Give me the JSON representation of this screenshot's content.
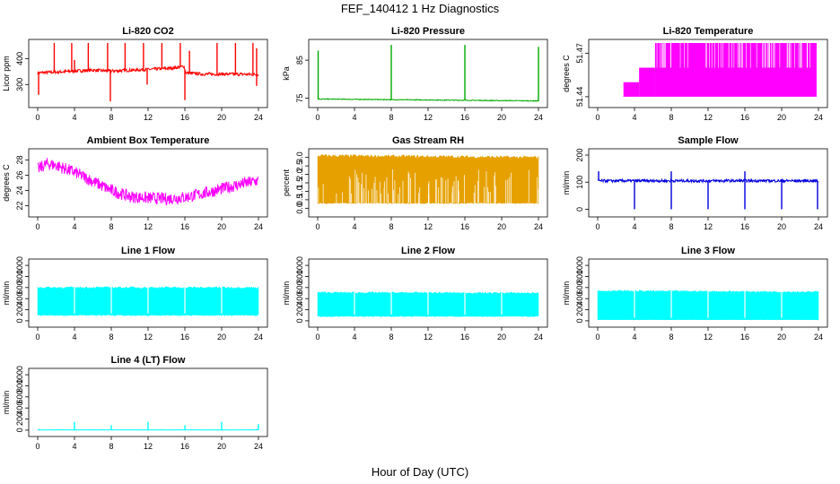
{
  "figure": {
    "title": "FEF_140412  1 Hz Diagnostics",
    "xlabel": "Hour of Day (UTC)"
  },
  "chart_data": [
    {
      "type": "line",
      "title": "Li-820 CO2",
      "ylabel": "Licor ppm",
      "color": "#ff0000",
      "xlim": [
        0,
        24
      ],
      "ylim": [
        225,
        460
      ],
      "x_ticks": [
        0,
        4,
        8,
        12,
        16,
        20,
        24
      ],
      "y_ticks": [
        300,
        400
      ],
      "baseline": [
        [
          0,
          345
        ],
        [
          2,
          348
        ],
        [
          4,
          352
        ],
        [
          6,
          355
        ],
        [
          8,
          352
        ],
        [
          10,
          355
        ],
        [
          12,
          358
        ],
        [
          14,
          362
        ],
        [
          15,
          365
        ],
        [
          15.9,
          370
        ],
        [
          16.1,
          345
        ],
        [
          18,
          340
        ],
        [
          20,
          340
        ],
        [
          22,
          340
        ],
        [
          24,
          338
        ]
      ],
      "noise": 6,
      "spikes_up": [
        [
          1.8,
          460
        ],
        [
          3.7,
          460
        ],
        [
          4.0,
          395
        ],
        [
          5.5,
          460
        ],
        [
          7.6,
          460
        ],
        [
          9.5,
          460
        ],
        [
          11.5,
          460
        ],
        [
          13.5,
          460
        ],
        [
          15.5,
          460
        ],
        [
          16.5,
          430
        ],
        [
          19.5,
          460
        ],
        [
          21.5,
          460
        ],
        [
          23.4,
          460
        ],
        [
          23.8,
          440
        ]
      ],
      "spikes_down": [
        [
          0.1,
          260
        ],
        [
          7.9,
          235
        ],
        [
          11.9,
          300
        ],
        [
          16.0,
          240
        ],
        [
          23.8,
          295
        ]
      ]
    },
    {
      "type": "line",
      "title": "Li-820 Pressure",
      "ylabel": "kPa",
      "color": "#00aa00",
      "xlim": [
        0,
        24
      ],
      "ylim": [
        73.5,
        89.5
      ],
      "x_ticks": [
        0,
        4,
        8,
        12,
        16,
        20,
        24
      ],
      "y_ticks": [
        75,
        85
      ],
      "baseline": [
        [
          0,
          74.8
        ],
        [
          24,
          74.3
        ]
      ],
      "noise": 0.1,
      "spikes_up": [
        [
          0.05,
          87.5
        ],
        [
          8.0,
          89
        ],
        [
          16.0,
          89
        ],
        [
          24.0,
          88.5
        ]
      ],
      "spikes_down": []
    },
    {
      "type": "area",
      "title": "Li-820 Temperature",
      "ylabel": "degrees C",
      "color": "#ff00ff",
      "xlim": [
        0,
        24
      ],
      "ylim": [
        51.435,
        51.477
      ],
      "x_ticks": [
        0,
        4,
        8,
        12,
        16,
        20,
        24
      ],
      "y_ticks": [
        51.44,
        51.47
      ],
      "y_tick_labels": [
        "51.44",
        "51.47"
      ],
      "levels": [
        51.44,
        51.45,
        51.46,
        51.47
      ],
      "segments": [
        [
          0,
          2.8,
          51.44
        ],
        [
          2.8,
          4.5,
          51.45
        ],
        [
          4.5,
          6.2,
          51.46
        ],
        [
          6.2,
          23.8,
          51.477
        ]
      ]
    },
    {
      "type": "line",
      "title": "Ambient Box Temperature",
      "ylabel": "degrees C",
      "color": "#ff00ff",
      "xlim": [
        0,
        24
      ],
      "ylim": [
        21,
        29
      ],
      "x_ticks": [
        0,
        4,
        8,
        12,
        16,
        20,
        24
      ],
      "y_ticks": [
        22,
        24,
        26,
        28
      ],
      "baseline": [
        [
          0,
          26.8
        ],
        [
          1,
          27.5
        ],
        [
          2,
          27.3
        ],
        [
          4,
          26.4
        ],
        [
          6,
          25.2
        ],
        [
          8,
          24.0
        ],
        [
          10,
          23.2
        ],
        [
          12,
          23.0
        ],
        [
          14,
          22.9
        ],
        [
          16,
          23.1
        ],
        [
          18,
          23.6
        ],
        [
          20,
          24.2
        ],
        [
          22,
          24.8
        ],
        [
          24,
          25.3
        ]
      ],
      "noise": 0.8,
      "spikes_up": [],
      "spikes_down": []
    },
    {
      "type": "area",
      "title": "Gas Stream RH",
      "ylabel": "percent",
      "color": "#e6a100",
      "xlim": [
        0,
        24
      ],
      "ylim": [
        -0.3,
        3.3
      ],
      "x_ticks": [
        0,
        4,
        8,
        12,
        16,
        20,
        24
      ],
      "y_ticks": [
        0,
        0.5,
        1,
        1.5,
        2,
        2.5,
        3
      ],
      "y_tick_labels": [
        "0.0",
        "0.5",
        "1.0",
        "1.5",
        "2.0",
        "2.5",
        "3.0"
      ],
      "upper": [
        [
          0,
          3.1
        ],
        [
          24,
          3.0
        ]
      ],
      "lower": [
        [
          0,
          0.3
        ],
        [
          24,
          0.3
        ]
      ]
    },
    {
      "type": "line",
      "title": "Sample Flow",
      "ylabel": "ml/min",
      "color": "#0000dd",
      "xlim": [
        0,
        24
      ],
      "ylim": [
        -15,
        210
      ],
      "x_ticks": [
        0,
        4,
        8,
        12,
        16,
        20,
        24
      ],
      "y_ticks": [
        0,
        100,
        200
      ],
      "baseline": [
        [
          0,
          105
        ],
        [
          24,
          105
        ]
      ],
      "noise": 5,
      "spikes_up": [
        [
          0.1,
          140
        ],
        [
          8.0,
          140
        ],
        [
          16.0,
          140
        ]
      ],
      "spikes_down": [
        [
          4.0,
          0
        ],
        [
          8.0,
          0
        ],
        [
          12.0,
          0
        ],
        [
          16.0,
          0
        ],
        [
          20.0,
          0
        ],
        [
          23.9,
          0
        ]
      ]
    },
    {
      "type": "area",
      "title": "Line 1 Flow",
      "ylabel": "ml/min",
      "color": "#00ffff",
      "xlim": [
        0,
        24
      ],
      "ylim": [
        -50,
        1050
      ],
      "x_ticks": [
        0,
        4,
        8,
        12,
        16,
        20,
        24
      ],
      "y_ticks": [
        0,
        200,
        400,
        600,
        800,
        1000
      ],
      "upper": [
        [
          0,
          600
        ],
        [
          24,
          600
        ]
      ],
      "lower": [
        [
          0,
          100
        ],
        [
          24,
          100
        ]
      ],
      "gaps": [
        4.0,
        8.0,
        12.0,
        16.0,
        20.0
      ]
    },
    {
      "type": "area",
      "title": "Line 2 Flow",
      "ylabel": "ml/min",
      "color": "#00ffff",
      "xlim": [
        0,
        24
      ],
      "ylim": [
        -50,
        1050
      ],
      "x_ticks": [
        0,
        4,
        8,
        12,
        16,
        20,
        24
      ],
      "y_ticks": [
        0,
        200,
        400,
        600,
        800,
        1000
      ],
      "upper": [
        [
          0,
          510
        ],
        [
          24,
          500
        ]
      ],
      "lower": [
        [
          0,
          80
        ],
        [
          24,
          80
        ]
      ],
      "gaps": [
        4.0,
        8.0,
        12.0,
        16.0,
        20.0
      ]
    },
    {
      "type": "area",
      "title": "Line 3 Flow",
      "ylabel": "ml/min",
      "color": "#00ffff",
      "xlim": [
        0,
        24
      ],
      "ylim": [
        -50,
        1050
      ],
      "x_ticks": [
        0,
        4,
        8,
        12,
        16,
        20,
        24
      ],
      "y_ticks": [
        0,
        200,
        400,
        600,
        800,
        1000
      ],
      "upper": [
        [
          0,
          540
        ],
        [
          24,
          520
        ]
      ],
      "lower": [
        [
          0,
          20
        ],
        [
          24,
          20
        ]
      ],
      "gaps": [
        4.0,
        8.0,
        12.0,
        16.0,
        20.0
      ]
    },
    {
      "type": "line",
      "title": "Line 4 (LT) Flow",
      "ylabel": "ml/min",
      "color": "#00ffff",
      "xlim": [
        0,
        24
      ],
      "ylim": [
        -50,
        1050
      ],
      "x_ticks": [
        0,
        4,
        8,
        12,
        16,
        20,
        24
      ],
      "y_ticks": [
        0,
        200,
        400,
        600,
        800,
        1000
      ],
      "baseline": [
        [
          0,
          5
        ],
        [
          24,
          5
        ]
      ],
      "noise": 3,
      "spikes_up": [
        [
          4.0,
          150
        ],
        [
          8.0,
          90
        ],
        [
          12.0,
          150
        ],
        [
          16.0,
          90
        ],
        [
          20.0,
          150
        ],
        [
          24.0,
          110
        ]
      ],
      "spikes_down": []
    }
  ]
}
